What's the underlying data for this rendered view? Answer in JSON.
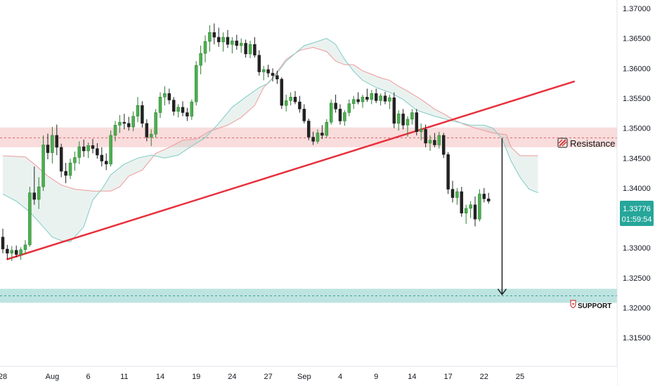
{
  "chart_data": {
    "type": "candlestick",
    "y_axis": {
      "ylim": [
        1.3102,
        1.37142
      ],
      "ticks": [
        "1.37000",
        "1.36500",
        "1.36000",
        "1.35500",
        "1.35000",
        "1.34500",
        "1.34000",
        "1.33500",
        "1.33000",
        "1.32500",
        "1.32000",
        "1.31500"
      ],
      "tick_values": [
        1.37,
        1.365,
        1.36,
        1.355,
        1.35,
        1.345,
        1.34,
        1.335,
        1.33,
        1.325,
        1.32,
        1.315
      ]
    },
    "x_axis": {
      "labels": [
        "28",
        "Aug",
        "6",
        "11",
        "14",
        "19",
        "24",
        "27",
        "Sep",
        "4",
        "9",
        "14",
        "17",
        "22",
        "25"
      ],
      "label_index": [
        0,
        11,
        19,
        27,
        35,
        43,
        51,
        59,
        67,
        75,
        83,
        91,
        99,
        107,
        115
      ]
    },
    "ohlc": [
      [
        1.3318,
        1.3332,
        1.3291,
        1.3298
      ],
      [
        1.3298,
        1.3305,
        1.3281,
        1.3291
      ],
      [
        1.3291,
        1.3303,
        1.3278,
        1.3296
      ],
      [
        1.3296,
        1.3304,
        1.3284,
        1.3289
      ],
      [
        1.3289,
        1.3301,
        1.328,
        1.3297
      ],
      [
        1.3297,
        1.3313,
        1.3289,
        1.3305
      ],
      [
        1.3305,
        1.3402,
        1.3302,
        1.3392
      ],
      [
        1.3392,
        1.3436,
        1.3372,
        1.3381
      ],
      [
        1.3381,
        1.3418,
        1.3365,
        1.3402
      ],
      [
        1.3402,
        1.3488,
        1.3395,
        1.3472
      ],
      [
        1.3472,
        1.3491,
        1.3448,
        1.3459
      ],
      [
        1.3459,
        1.3502,
        1.3441,
        1.3488
      ],
      [
        1.3488,
        1.3506,
        1.3455,
        1.3468
      ],
      [
        1.3468,
        1.3474,
        1.3418,
        1.3428
      ],
      [
        1.3428,
        1.3442,
        1.3408,
        1.3421
      ],
      [
        1.3421,
        1.3449,
        1.3415,
        1.3442
      ],
      [
        1.3442,
        1.3461,
        1.3429,
        1.3451
      ],
      [
        1.3451,
        1.3478,
        1.344,
        1.3469
      ],
      [
        1.3469,
        1.3481,
        1.3452,
        1.3462
      ],
      [
        1.3462,
        1.3476,
        1.345,
        1.3471
      ],
      [
        1.3471,
        1.3482,
        1.3458,
        1.3466
      ],
      [
        1.3466,
        1.3475,
        1.3449,
        1.3455
      ],
      [
        1.3455,
        1.3468,
        1.3436,
        1.3445
      ],
      [
        1.3445,
        1.3458,
        1.343,
        1.344
      ],
      [
        1.344,
        1.3496,
        1.3436,
        1.3488
      ],
      [
        1.3488,
        1.3512,
        1.3478,
        1.3505
      ],
      [
        1.3505,
        1.3522,
        1.3492,
        1.351
      ],
      [
        1.351,
        1.3524,
        1.3498,
        1.3508
      ],
      [
        1.3508,
        1.3519,
        1.3496,
        1.3502
      ],
      [
        1.3502,
        1.3528,
        1.3495,
        1.352
      ],
      [
        1.352,
        1.3552,
        1.351,
        1.3538
      ],
      [
        1.3538,
        1.3545,
        1.3501,
        1.3508
      ],
      [
        1.3508,
        1.3515,
        1.3478,
        1.3485
      ],
      [
        1.3485,
        1.3498,
        1.347,
        1.349
      ],
      [
        1.349,
        1.3532,
        1.3484,
        1.3526
      ],
      [
        1.3526,
        1.356,
        1.3517,
        1.3552
      ],
      [
        1.3552,
        1.357,
        1.3538,
        1.3558
      ],
      [
        1.3558,
        1.3566,
        1.354,
        1.3547
      ],
      [
        1.3547,
        1.3552,
        1.3521,
        1.3528
      ],
      [
        1.3528,
        1.354,
        1.3518,
        1.3535
      ],
      [
        1.3535,
        1.3545,
        1.352,
        1.3526
      ],
      [
        1.3526,
        1.3534,
        1.3512,
        1.352
      ],
      [
        1.352,
        1.3548,
        1.3514,
        1.3544
      ],
      [
        1.3544,
        1.3612,
        1.3538,
        1.3605
      ],
      [
        1.3605,
        1.3638,
        1.359,
        1.3625
      ],
      [
        1.3625,
        1.3655,
        1.361,
        1.3645
      ],
      [
        1.3645,
        1.3672,
        1.3628,
        1.366
      ],
      [
        1.366,
        1.3675,
        1.364,
        1.3652
      ],
      [
        1.3652,
        1.3668,
        1.3636,
        1.3644
      ],
      [
        1.3644,
        1.366,
        1.3628,
        1.3652
      ],
      [
        1.3652,
        1.3664,
        1.3634,
        1.364
      ],
      [
        1.364,
        1.3652,
        1.3625,
        1.3646
      ],
      [
        1.3646,
        1.3656,
        1.3631,
        1.3638
      ],
      [
        1.3638,
        1.365,
        1.3626,
        1.3642
      ],
      [
        1.3642,
        1.3648,
        1.3618,
        1.3624
      ],
      [
        1.3624,
        1.3646,
        1.3617,
        1.364
      ],
      [
        1.364,
        1.3652,
        1.3618,
        1.3622
      ],
      [
        1.3622,
        1.363,
        1.3588,
        1.3594
      ],
      [
        1.3594,
        1.3604,
        1.358,
        1.3598
      ],
      [
        1.3598,
        1.3606,
        1.3585,
        1.3592
      ],
      [
        1.3592,
        1.36,
        1.3578,
        1.3588
      ],
      [
        1.3588,
        1.3596,
        1.3574,
        1.3582
      ],
      [
        1.3582,
        1.3585,
        1.3532,
        1.3538
      ],
      [
        1.3538,
        1.3556,
        1.3528,
        1.3546
      ],
      [
        1.3546,
        1.356,
        1.3538,
        1.3552
      ],
      [
        1.3552,
        1.3562,
        1.354,
        1.3544
      ],
      [
        1.3544,
        1.3554,
        1.3526,
        1.3532
      ],
      [
        1.3532,
        1.354,
        1.3508,
        1.3512
      ],
      [
        1.3512,
        1.3516,
        1.348,
        1.3485
      ],
      [
        1.3485,
        1.3494,
        1.3472,
        1.3478
      ],
      [
        1.3478,
        1.3498,
        1.3474,
        1.3492
      ],
      [
        1.3492,
        1.3505,
        1.3482,
        1.3488
      ],
      [
        1.3488,
        1.3515,
        1.3484,
        1.351
      ],
      [
        1.351,
        1.3548,
        1.3506,
        1.3542
      ],
      [
        1.3542,
        1.3556,
        1.3526,
        1.3532
      ],
      [
        1.3532,
        1.354,
        1.3506,
        1.3512
      ],
      [
        1.3512,
        1.353,
        1.3504,
        1.3526
      ],
      [
        1.3526,
        1.3548,
        1.352,
        1.3541
      ],
      [
        1.3541,
        1.3554,
        1.3532,
        1.3548
      ],
      [
        1.3548,
        1.356,
        1.354,
        1.3544
      ],
      [
        1.3544,
        1.3556,
        1.3534,
        1.3552
      ],
      [
        1.3552,
        1.3566,
        1.3544,
        1.3548
      ],
      [
        1.3548,
        1.3564,
        1.354,
        1.3558
      ],
      [
        1.3558,
        1.3566,
        1.3542,
        1.3546
      ],
      [
        1.3546,
        1.3558,
        1.3538,
        1.3554
      ],
      [
        1.3554,
        1.3561,
        1.354,
        1.3545
      ],
      [
        1.3545,
        1.3556,
        1.3532,
        1.3551
      ],
      [
        1.3551,
        1.356,
        1.35,
        1.3508
      ],
      [
        1.3508,
        1.353,
        1.3496,
        1.3524
      ],
      [
        1.3524,
        1.3532,
        1.3498,
        1.3505
      ],
      [
        1.3505,
        1.352,
        1.3486,
        1.3515
      ],
      [
        1.3515,
        1.3532,
        1.3506,
        1.3526
      ],
      [
        1.3526,
        1.3532,
        1.3488,
        1.3494
      ],
      [
        1.3494,
        1.3508,
        1.348,
        1.3498
      ],
      [
        1.3498,
        1.3506,
        1.3468,
        1.3475
      ],
      [
        1.3475,
        1.3488,
        1.3462,
        1.348
      ],
      [
        1.348,
        1.3492,
        1.3468,
        1.3472
      ],
      [
        1.3472,
        1.3494,
        1.3466,
        1.3488
      ],
      [
        1.3488,
        1.3492,
        1.345,
        1.3456
      ],
      [
        1.3456,
        1.346,
        1.339,
        1.3398
      ],
      [
        1.3398,
        1.3412,
        1.3376,
        1.3384
      ],
      [
        1.3384,
        1.34,
        1.3372,
        1.3394
      ],
      [
        1.3394,
        1.3402,
        1.3352,
        1.3358
      ],
      [
        1.3358,
        1.3372,
        1.334,
        1.3366
      ],
      [
        1.3366,
        1.3378,
        1.335,
        1.3372
      ],
      [
        1.3372,
        1.3386,
        1.3336,
        1.3348
      ],
      [
        1.3348,
        1.3398,
        1.3344,
        1.339
      ],
      [
        1.339,
        1.34,
        1.3376,
        1.3382
      ],
      [
        1.3382,
        1.3392,
        1.3374,
        1.3378
      ]
    ],
    "last_price": "1.33776",
    "countdown": "01:59:54",
    "trendline": {
      "from": {
        "index": 1,
        "price": 1.3281
      },
      "to": {
        "index": 127,
        "price": 1.3578
      }
    },
    "resistance_zone": {
      "top": 1.35012,
      "bottom": 1.34682,
      "mid": 1.34839,
      "label": "Resistance"
    },
    "support_zone": {
      "top": 1.32316,
      "bottom": 1.32082,
      "mid": 1.32199,
      "label": "SUPPORT"
    },
    "projection_arrow": {
      "index": 111,
      "from": 1.3483,
      "to": 1.3222
    },
    "cloud": {
      "upper": [
        [
          0,
          1.3454
        ],
        [
          5,
          1.3452
        ],
        [
          7,
          1.344
        ],
        [
          10,
          1.342
        ],
        [
          13,
          1.3405
        ],
        [
          16,
          1.3398
        ],
        [
          20,
          1.3395
        ],
        [
          24,
          1.3395
        ],
        [
          26,
          1.3402
        ],
        [
          28,
          1.342
        ],
        [
          31,
          1.343
        ],
        [
          34,
          1.3458
        ],
        [
          37,
          1.3468
        ],
        [
          40,
          1.348
        ],
        [
          43,
          1.3482
        ],
        [
          46,
          1.3495
        ],
        [
          50,
          1.3505
        ],
        [
          53,
          1.3518
        ],
        [
          56,
          1.3538
        ],
        [
          58,
          1.3568
        ],
        [
          60,
          1.3584
        ],
        [
          63,
          1.3615
        ],
        [
          66,
          1.363
        ],
        [
          69,
          1.3635
        ],
        [
          72,
          1.3628
        ],
        [
          74,
          1.3612
        ],
        [
          76,
          1.3606
        ],
        [
          78,
          1.3606
        ],
        [
          80,
          1.3596
        ],
        [
          82,
          1.359
        ],
        [
          84,
          1.3584
        ],
        [
          86,
          1.358
        ],
        [
          88,
          1.357
        ],
        [
          90,
          1.3562
        ],
        [
          93,
          1.3548
        ],
        [
          96,
          1.3532
        ],
        [
          98,
          1.3524
        ],
        [
          100,
          1.3515
        ],
        [
          103,
          1.3505
        ],
        [
          106,
          1.3498
        ],
        [
          109,
          1.3492
        ],
        [
          112,
          1.3489
        ],
        [
          113,
          1.3468
        ],
        [
          115,
          1.3454
        ],
        [
          119,
          1.3454
        ]
      ],
      "lower": [
        [
          0,
          1.339
        ],
        [
          3,
          1.3378
        ],
        [
          6,
          1.336
        ],
        [
          9,
          1.3335
        ],
        [
          11,
          1.3318
        ],
        [
          13,
          1.3312
        ],
        [
          15,
          1.331
        ],
        [
          18,
          1.3335
        ],
        [
          20,
          1.338
        ],
        [
          22,
          1.3398
        ],
        [
          24,
          1.3422
        ],
        [
          27,
          1.344
        ],
        [
          30,
          1.345
        ],
        [
          33,
          1.3455
        ],
        [
          36,
          1.345
        ],
        [
          39,
          1.3455
        ],
        [
          42,
          1.347
        ],
        [
          45,
          1.3484
        ],
        [
          48,
          1.3508
        ],
        [
          51,
          1.3535
        ],
        [
          54,
          1.3552
        ],
        [
          57,
          1.3568
        ],
        [
          59,
          1.3575
        ],
        [
          61,
          1.3592
        ],
        [
          63,
          1.3612
        ],
        [
          65,
          1.3625
        ],
        [
          67,
          1.3638
        ],
        [
          70,
          1.3645
        ],
        [
          72,
          1.365
        ],
        [
          74,
          1.364
        ],
        [
          76,
          1.3615
        ],
        [
          78,
          1.3595
        ],
        [
          80,
          1.358
        ],
        [
          83,
          1.3568
        ],
        [
          86,
          1.356
        ],
        [
          89,
          1.3548
        ],
        [
          92,
          1.353
        ],
        [
          96,
          1.352
        ],
        [
          100,
          1.3512
        ],
        [
          104,
          1.3505
        ],
        [
          107,
          1.3505
        ],
        [
          109,
          1.35
        ],
        [
          111,
          1.3482
        ],
        [
          113,
          1.3445
        ],
        [
          115,
          1.3418
        ],
        [
          117,
          1.3398
        ],
        [
          119,
          1.3392
        ]
      ]
    }
  }
}
